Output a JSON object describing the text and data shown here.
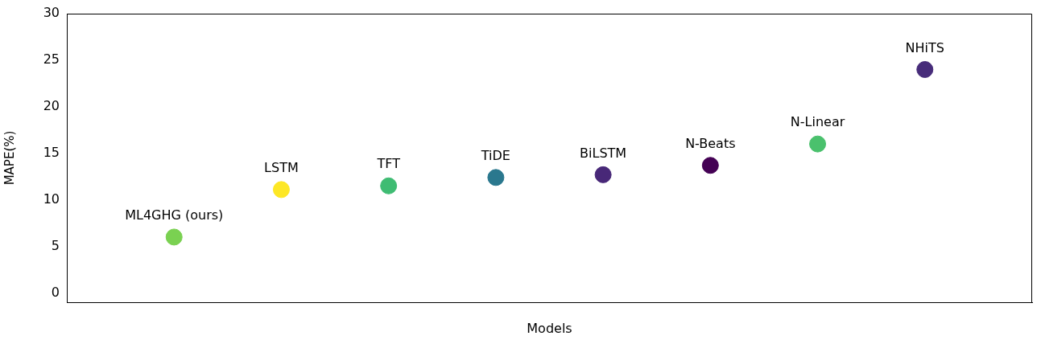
{
  "chart_data": {
    "type": "scatter",
    "xlabel": "Models",
    "ylabel": "MAPE(%)",
    "categories": [
      "ML4GHG (ours)",
      "LSTM",
      "TFT",
      "TiDE",
      "BiLSTM",
      "N-Beats",
      "N-Linear",
      "NHiTS"
    ],
    "values": [
      6.0,
      11.1,
      11.5,
      12.4,
      12.7,
      13.7,
      16.0,
      24.0
    ],
    "colors": [
      "#7ad151",
      "#fde725",
      "#3fbc73",
      "#2a788e",
      "#482878",
      "#440154",
      "#4ac16d",
      "#472c7a"
    ],
    "ylim": [
      -1,
      30
    ],
    "yticks": [
      0,
      5,
      10,
      15,
      20,
      25,
      30
    ],
    "grid": false,
    "legend": false,
    "tick_labels": "y",
    "marker": "circle"
  }
}
